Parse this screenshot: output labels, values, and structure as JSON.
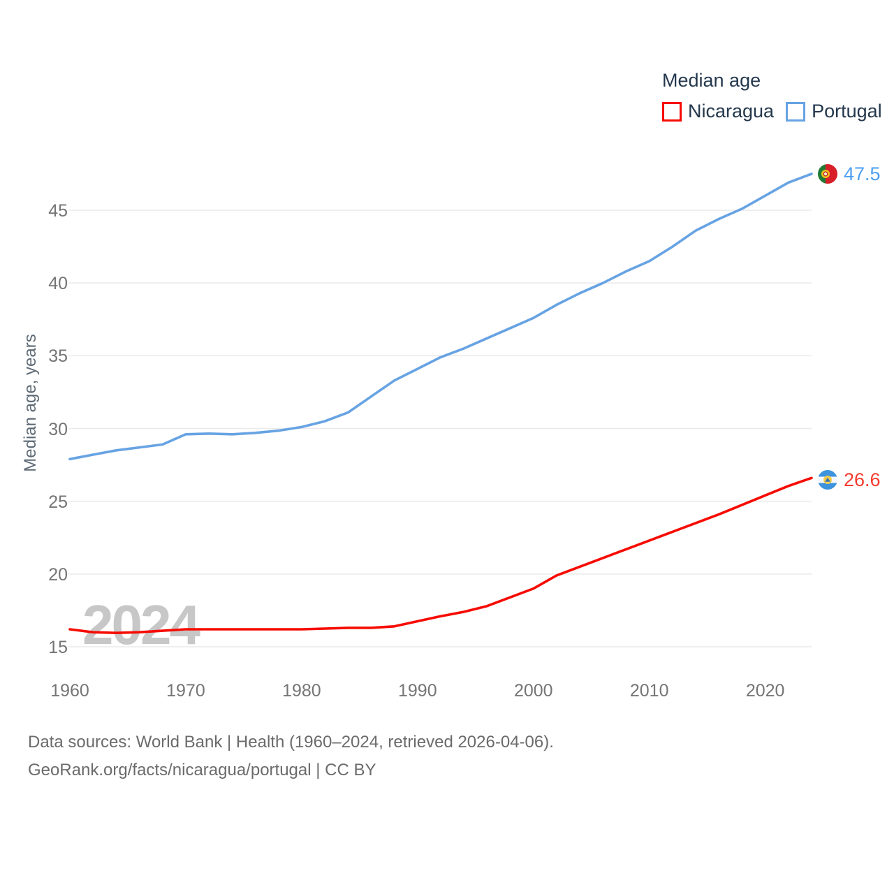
{
  "legend": {
    "title": "Median age",
    "items": [
      {
        "label": "Nicaragua"
      },
      {
        "label": "Portugal"
      }
    ]
  },
  "watermark": "2024",
  "y_axis_title": "Median age, years",
  "end_labels": {
    "portugal": {
      "value": "47.5"
    },
    "nicaragua": {
      "value": "26.6"
    }
  },
  "footer": {
    "line1": "Data sources: World Bank | Health (1960–2024, retrieved 2026-04-06).",
    "line2": "GeoRank.org/facts/nicaragua/portugal | CC BY"
  },
  "chart_data": {
    "type": "line",
    "title": "Median age",
    "ylabel": "Median age, years",
    "xlim": [
      1960,
      2024
    ],
    "ylim": [
      15,
      48
    ],
    "x_ticks": [
      1960,
      1970,
      1980,
      1990,
      2000,
      2010,
      2020
    ],
    "y_ticks": [
      15,
      20,
      25,
      30,
      35,
      40,
      45
    ],
    "grid": "horizontal",
    "legend_position": "top-right",
    "x": [
      1960,
      1962,
      1964,
      1966,
      1968,
      1970,
      1972,
      1974,
      1976,
      1978,
      1980,
      1982,
      1984,
      1986,
      1988,
      1990,
      1992,
      1994,
      1996,
      1998,
      2000,
      2002,
      2004,
      2006,
      2008,
      2010,
      2012,
      2014,
      2016,
      2018,
      2020,
      2022,
      2024
    ],
    "series": [
      {
        "name": "Nicaragua",
        "color": "#f60b00",
        "label_color": "#f43b2e",
        "end_value": 26.6,
        "values": [
          16.2,
          16.0,
          15.95,
          16.0,
          16.1,
          16.2,
          16.2,
          16.2,
          16.2,
          16.2,
          16.2,
          16.25,
          16.3,
          16.3,
          16.4,
          16.75,
          17.1,
          17.4,
          17.8,
          18.4,
          19.0,
          19.9,
          20.5,
          21.1,
          21.7,
          22.3,
          22.9,
          23.5,
          24.1,
          24.75,
          25.4,
          26.05,
          26.6
        ]
      },
      {
        "name": "Portugal",
        "color": "#67a3e3",
        "label_color": "#4d9ff0",
        "end_value": 47.5,
        "values": [
          27.9,
          28.2,
          28.5,
          28.7,
          28.9,
          29.6,
          29.65,
          29.6,
          29.7,
          29.85,
          30.1,
          30.5,
          31.1,
          32.2,
          33.3,
          34.1,
          34.9,
          35.5,
          36.2,
          36.9,
          37.6,
          38.5,
          39.3,
          40.0,
          40.8,
          41.5,
          42.5,
          43.6,
          44.4,
          45.1,
          46.0,
          46.9,
          47.5
        ]
      }
    ]
  },
  "colors": {
    "gridline": "#eaeaea",
    "tick_text": "#757575",
    "legend_text": "#24384d",
    "watermark": "#c7c7c7",
    "footer_text": "#6b6b6b"
  }
}
